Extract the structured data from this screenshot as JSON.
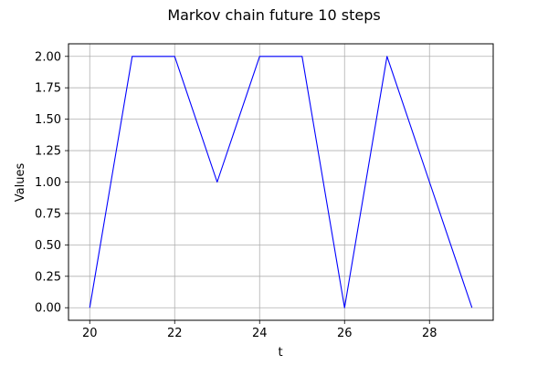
{
  "chart_data": {
    "type": "line",
    "title": "Markov chain future 10 steps",
    "xlabel": "t",
    "ylabel": "Values",
    "xlim": [
      19.5,
      29.5
    ],
    "ylim": [
      -0.1,
      2.1
    ],
    "xticks": [
      20,
      22,
      24,
      26,
      28
    ],
    "yticks": [
      0.0,
      0.25,
      0.5,
      0.75,
      1.0,
      1.25,
      1.5,
      1.75,
      2.0
    ],
    "ytick_labels": [
      "0.00",
      "0.25",
      "0.50",
      "0.75",
      "1.00",
      "1.25",
      "1.50",
      "1.75",
      "2.00"
    ],
    "grid": true,
    "series": [
      {
        "color": "#0000ff",
        "x": [
          20,
          21,
          22,
          23,
          24,
          25,
          26,
          27,
          28,
          29
        ],
        "y": [
          0,
          2,
          2,
          1,
          2,
          2,
          0,
          2,
          1,
          0
        ]
      }
    ]
  }
}
